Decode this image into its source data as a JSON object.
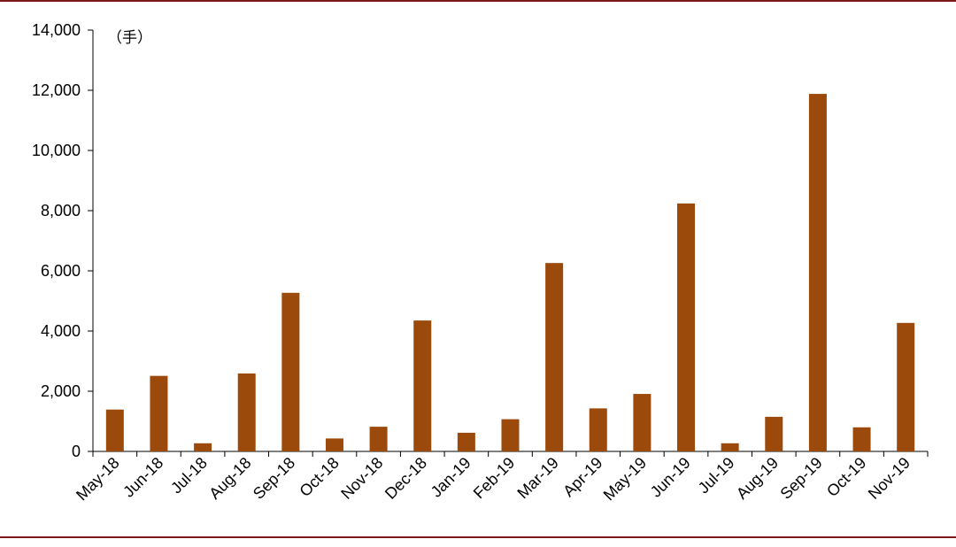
{
  "chart_data": {
    "type": "bar",
    "title": "",
    "xlabel": "",
    "ylabel": "",
    "unit_label": "（手）",
    "categories": [
      "May-18",
      "Jun-18",
      "Jul-18",
      "Aug-18",
      "Sep-18",
      "Oct-18",
      "Nov-18",
      "Dec-18",
      "Jan-19",
      "Feb-19",
      "Mar-19",
      "Apr-19",
      "May-19",
      "Jun-19",
      "Jul-19",
      "Aug-19",
      "Sep-19",
      "Oct-19",
      "Nov-19"
    ],
    "values": [
      1390,
      2510,
      270,
      2590,
      5270,
      430,
      820,
      4350,
      620,
      1070,
      6260,
      1430,
      1910,
      8240,
      270,
      1150,
      11880,
      800,
      4270
    ],
    "ylim": [
      0,
      14000
    ],
    "yticks": [
      0,
      2000,
      4000,
      6000,
      8000,
      10000,
      12000,
      14000
    ],
    "ytick_labels": [
      "0",
      "2,000",
      "4,000",
      "6,000",
      "8,000",
      "10,000",
      "12,000",
      "14,000"
    ],
    "bar_color": "#9b4a0b",
    "grid": false,
    "legend": "none"
  }
}
